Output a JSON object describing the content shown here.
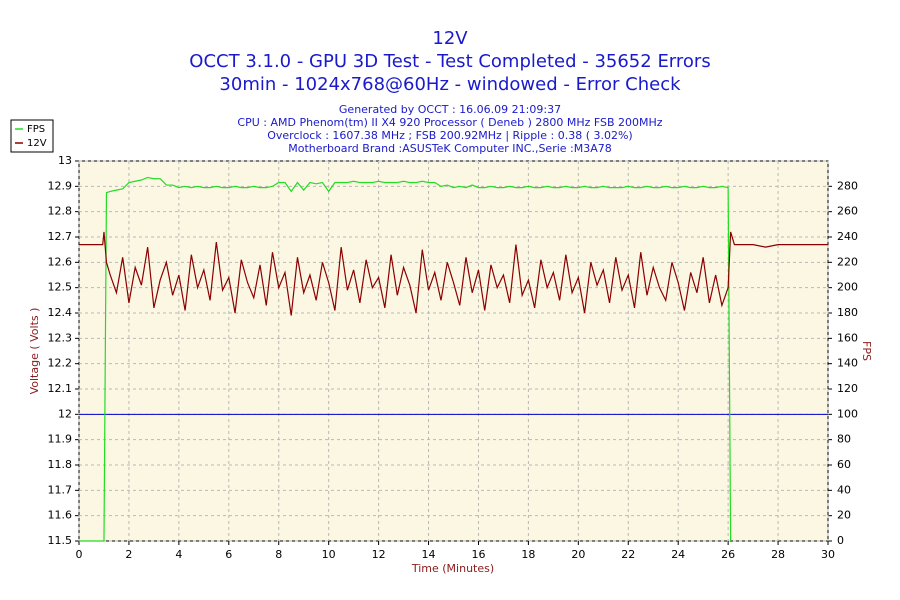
{
  "chart_data": {
    "type": "line",
    "title": "12V",
    "subtitle": [
      "OCCT 3.1.0 - GPU 3D Test - Test Completed - 35652 Errors",
      "30min - 1024x768@60Hz - windowed - Error Check"
    ],
    "info": [
      "Generated by OCCT : 16.06.09 21:09:37",
      "CPU : AMD Phenom(tm) II X4 920 Processor ( Deneb ) 2800 MHz FSB 200MHz",
      "Overclock : 1607.38 MHz ; FSB 200.92MHz | Ripple : 0.38 ( 3.02%)",
      "Motherboard Brand :ASUSTeK Computer INC.,Serie :M3A78"
    ],
    "x_label": "Time (Minutes)",
    "y_label": "Voltage ( Volts )",
    "y2_label": "FPS",
    "xlim": [
      0,
      30
    ],
    "xticks": [
      0,
      2,
      4,
      6,
      8,
      10,
      12,
      14,
      16,
      18,
      20,
      22,
      24,
      26,
      28,
      30
    ],
    "ylim": [
      11.5,
      13
    ],
    "yticks": [
      11.5,
      11.6,
      11.7,
      11.8,
      11.9,
      12,
      12.1,
      12.2,
      12.3,
      12.4,
      12.5,
      12.6,
      12.7,
      12.8,
      12.9,
      13
    ],
    "y2lim": [
      0,
      300
    ],
    "y2ticks": [
      0,
      20,
      40,
      60,
      80,
      100,
      120,
      140,
      160,
      180,
      200,
      220,
      240,
      260,
      280
    ],
    "grid": true,
    "legend": "top-left",
    "reference_lines": [
      {
        "value": 12,
        "color": "#0000cc"
      }
    ],
    "x": [
      0,
      0.5,
      0.95,
      1,
      1.1,
      1.25,
      1.5,
      1.75,
      2,
      2.25,
      2.5,
      2.75,
      3,
      3.25,
      3.5,
      3.75,
      4,
      4.25,
      4.5,
      4.75,
      5,
      5.25,
      5.5,
      5.75,
      6,
      6.25,
      6.5,
      6.75,
      7,
      7.25,
      7.5,
      7.75,
      8,
      8.25,
      8.5,
      8.75,
      9,
      9.25,
      9.5,
      9.75,
      10,
      10.25,
      10.5,
      10.75,
      11,
      11.25,
      11.5,
      11.75,
      12,
      12.25,
      12.5,
      12.75,
      13,
      13.25,
      13.5,
      13.75,
      14,
      14.25,
      14.5,
      14.75,
      15,
      15.25,
      15.5,
      15.75,
      16,
      16.25,
      16.5,
      16.75,
      17,
      17.25,
      17.5,
      17.75,
      18,
      18.25,
      18.5,
      18.75,
      19,
      19.25,
      19.5,
      19.75,
      20,
      20.25,
      20.5,
      20.75,
      21,
      21.25,
      21.5,
      21.75,
      22,
      22.25,
      22.5,
      22.75,
      23,
      23.25,
      23.5,
      23.75,
      24,
      24.25,
      24.5,
      24.75,
      25,
      25.25,
      25.5,
      25.75,
      26,
      26.1,
      26.25,
      26.5,
      27,
      27.5,
      28,
      28.5,
      29,
      29.5,
      30
    ],
    "series": [
      {
        "name": "FPS",
        "color": "#22dd22",
        "axis": "y2",
        "values": [
          0,
          0,
          0,
          0,
          275,
          276,
          277,
          278,
          283,
          284,
          285,
          287,
          286,
          286,
          281,
          281,
          279,
          280,
          279,
          280,
          279,
          279,
          280,
          279,
          279,
          280,
          279,
          279,
          280,
          279,
          279,
          280,
          283,
          283,
          276,
          283,
          277,
          283,
          282,
          283,
          276,
          283,
          283,
          283,
          284,
          283,
          283,
          283,
          284,
          283,
          283,
          283,
          284,
          283,
          283,
          284,
          283,
          283,
          280,
          281,
          279,
          280,
          279,
          281,
          279,
          279,
          280,
          279,
          279,
          280,
          279,
          279,
          280,
          279,
          279,
          280,
          279,
          279,
          280,
          279,
          279,
          280,
          279,
          279,
          280,
          279,
          279,
          279,
          280,
          279,
          279,
          280,
          279,
          279,
          280,
          279,
          279,
          280,
          279,
          279,
          280,
          279,
          279,
          280,
          279,
          0,
          null,
          null,
          null,
          null,
          null,
          null,
          null,
          null,
          null
        ]
      },
      {
        "name": "12V",
        "color": "#8b0000",
        "values": [
          12.67,
          12.67,
          12.67,
          12.72,
          12.6,
          12.55,
          12.48,
          12.62,
          12.44,
          12.58,
          12.51,
          12.66,
          12.42,
          12.53,
          12.6,
          12.47,
          12.55,
          12.41,
          12.63,
          12.5,
          12.57,
          12.45,
          12.68,
          12.49,
          12.54,
          12.4,
          12.61,
          12.52,
          12.46,
          12.59,
          12.43,
          12.64,
          12.5,
          12.56,
          12.39,
          12.62,
          12.48,
          12.55,
          12.45,
          12.6,
          12.52,
          12.41,
          12.66,
          12.49,
          12.57,
          12.44,
          12.61,
          12.5,
          12.54,
          12.42,
          12.63,
          12.47,
          12.58,
          12.51,
          12.4,
          12.65,
          12.49,
          12.56,
          12.45,
          12.6,
          12.52,
          12.43,
          12.62,
          12.48,
          12.57,
          12.41,
          12.59,
          12.5,
          12.55,
          12.44,
          12.67,
          12.47,
          12.53,
          12.42,
          12.61,
          12.5,
          12.56,
          12.45,
          12.63,
          12.48,
          12.54,
          12.4,
          12.6,
          12.51,
          12.57,
          12.44,
          12.62,
          12.49,
          12.55,
          12.42,
          12.64,
          12.47,
          12.58,
          12.5,
          12.45,
          12.6,
          12.52,
          12.41,
          12.56,
          12.48,
          12.62,
          12.44,
          12.55,
          12.43,
          12.5,
          12.72,
          12.67,
          12.67,
          12.67,
          12.66,
          12.67,
          12.67,
          12.67,
          12.67,
          12.67
        ]
      }
    ]
  }
}
